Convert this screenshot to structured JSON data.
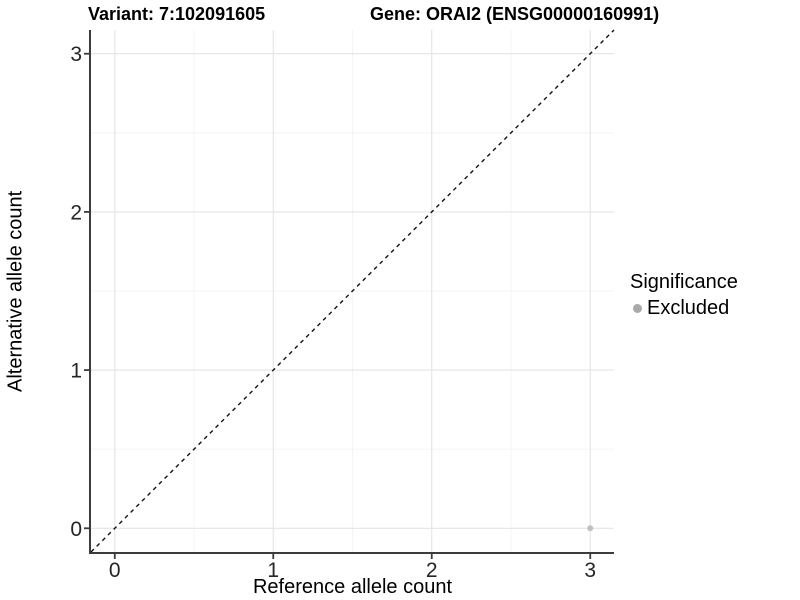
{
  "chart_data": {
    "type": "scatter",
    "titles": {
      "variant": "Variant: 7:102091605",
      "gene": "Gene: ORAI2 (ENSG00000160991)"
    },
    "xlabel": "Reference allele count",
    "ylabel": "Alternative allele count",
    "xlim": [
      -0.15,
      3.15
    ],
    "ylim": [
      -0.15,
      3.15
    ],
    "xticks": [
      0,
      1,
      2,
      3
    ],
    "yticks": [
      0,
      1,
      2,
      3
    ],
    "minor_ticks": [
      0.5,
      1.5,
      2.5
    ],
    "grid": true,
    "identity_line": {
      "style": "dashed",
      "from": [
        -0.15,
        -0.15
      ],
      "to": [
        3.15,
        3.15
      ],
      "color": "#111111"
    },
    "series": [
      {
        "name": "Excluded",
        "color": "#c0c0c0",
        "points": [
          {
            "x": 3,
            "y": 0
          }
        ]
      }
    ],
    "legend": {
      "title": "Significance",
      "position": "right",
      "entries": [
        {
          "label": "Excluded",
          "color": "#a9a9a9"
        }
      ]
    },
    "colors": {
      "grid_major": "#e4e4e4",
      "grid_minor": "#f4f4f4",
      "axis_line": "#3c3c3c",
      "tick_mark": "#3c3c3c",
      "tick_text": "#262626",
      "background": "#ffffff"
    }
  }
}
